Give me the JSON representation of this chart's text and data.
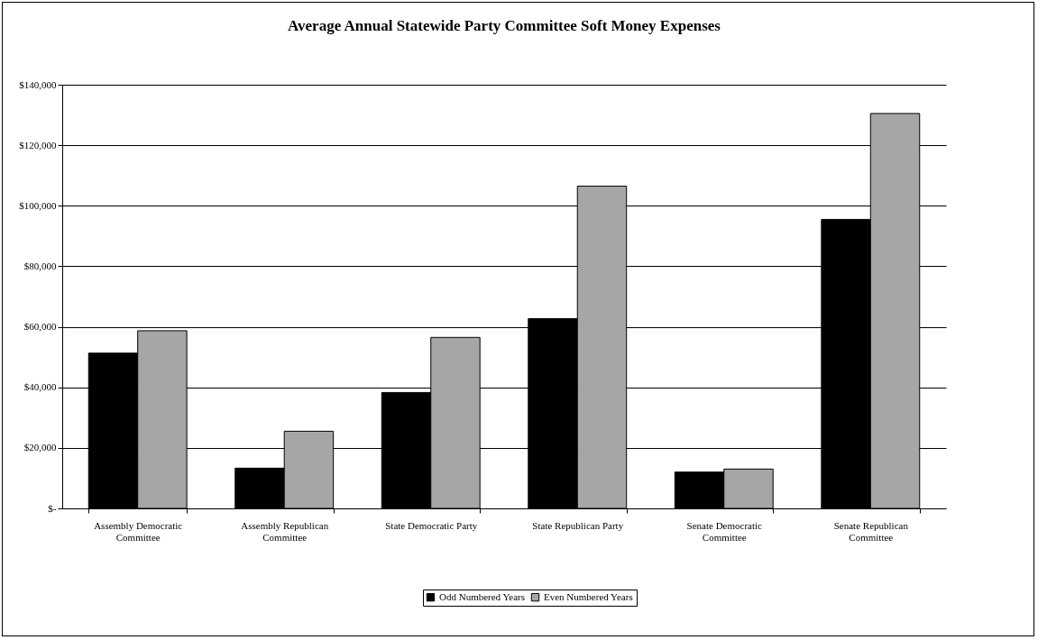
{
  "chart_data": {
    "type": "bar",
    "title": "Average Annual Statewide Party Committee Soft Money Expenses",
    "categories": [
      "Assembly Democratic Committee",
      "Assembly Republican Committee",
      "State Democratic Party",
      "State Republican Party",
      "Senate Democratic Committee",
      "Senate Republican Committee"
    ],
    "series": [
      {
        "name": "Odd Numbered Years",
        "color": "#000000",
        "values": [
          51300,
          13300,
          38300,
          62700,
          12000,
          95500
        ]
      },
      {
        "name": "Even Numbered Years",
        "color": "#a6a6a6",
        "values": [
          58700,
          25500,
          56500,
          106500,
          13000,
          130500
        ]
      }
    ],
    "ylim": [
      0,
      140000
    ],
    "yticks": [
      {
        "value": 0,
        "label": "$-"
      },
      {
        "value": 20000,
        "label": "$20,000"
      },
      {
        "value": 40000,
        "label": "$40,000"
      },
      {
        "value": 60000,
        "label": "$60,000"
      },
      {
        "value": 80000,
        "label": "$80,000"
      },
      {
        "value": 100000,
        "label": "$100,000"
      },
      {
        "value": 120000,
        "label": "$120,000"
      },
      {
        "value": 140000,
        "label": "$140,000"
      }
    ],
    "grid": "y",
    "legend": "bottom"
  }
}
